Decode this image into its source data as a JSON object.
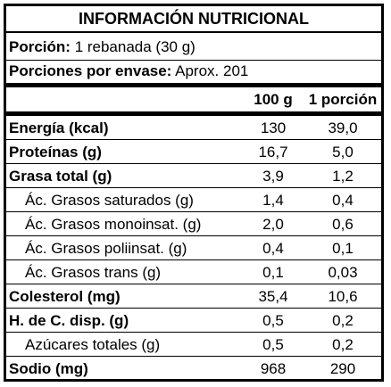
{
  "title": "INFORMACIÓN NUTRICIONAL",
  "portion": {
    "label": "Porción:",
    "value": "1 rebanada (30 g)"
  },
  "servings": {
    "label": "Porciones por envase:",
    "value": "Aprox. 201"
  },
  "columns": {
    "per100g": "100 g",
    "perPortion": "1 porción"
  },
  "rows": [
    {
      "name": "Energía (kcal)",
      "v100": "130",
      "vPortion": "39,0",
      "bold": true
    },
    {
      "name": "Proteínas (g)",
      "v100": "16,7",
      "vPortion": "5,0",
      "bold": true
    },
    {
      "name": "Grasa total (g)",
      "v100": "3,9",
      "vPortion": "1,2",
      "bold": true
    },
    {
      "name": "Ác. Grasos saturados (g)",
      "v100": "1,4",
      "vPortion": "0,4",
      "bold": false
    },
    {
      "name": "Ác. Grasos monoinsat. (g)",
      "v100": "2,0",
      "vPortion": "0,6",
      "bold": false
    },
    {
      "name": "Ác. Grasos poliinsat. (g)",
      "v100": "0,4",
      "vPortion": "0,1",
      "bold": false
    },
    {
      "name": "Ác. Grasos trans (g)",
      "v100": "0,1",
      "vPortion": "0,03",
      "bold": false
    },
    {
      "name": "Colesterol (mg)",
      "v100": "35,4",
      "vPortion": "10,6",
      "bold": true
    },
    {
      "name": "H. de C. disp. (g)",
      "v100": "0,5",
      "vPortion": "0,2",
      "bold": true
    },
    {
      "name": "Azúcares totales (g)",
      "v100": "0,5",
      "vPortion": "0,2",
      "bold": false
    },
    {
      "name": "Sodio (mg)",
      "v100": "968",
      "vPortion": "290",
      "bold": true
    }
  ]
}
